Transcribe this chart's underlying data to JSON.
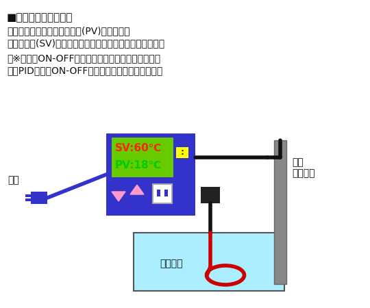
{
  "title_line1": "■温度調節器の仕組み",
  "body_line1": "　温度センサーで現在の温度(PV)を感知し、",
  "body_line2": "　設定温度(SV)に達するまでヒーターに電気を流します。",
  "note_line1": "　※電気のON-OFFの度合いを温度制御方式と呼び、",
  "note_line2": "　　PID制御、ON-OFF制御などの方式があります。",
  "sv_text": "SV:60℃",
  "pv_text": "PV:18℃",
  "label_dengen": "電源",
  "label_sensor": "温度\nセンサー",
  "label_heater": "ヒーター",
  "bg_color": "#ffffff",
  "controller_color": "#3333cc",
  "display_color": "#66cc00",
  "sv_color": "#ff2200",
  "pv_color": "#00cc00",
  "water_color": "#aaeeff",
  "heater_color": "#cc0000",
  "gray_color": "#888888",
  "black_color": "#111111",
  "pink_color": "#ff99cc",
  "yellow_color": "#ffff00",
  "blue_connector": "#3333cc"
}
